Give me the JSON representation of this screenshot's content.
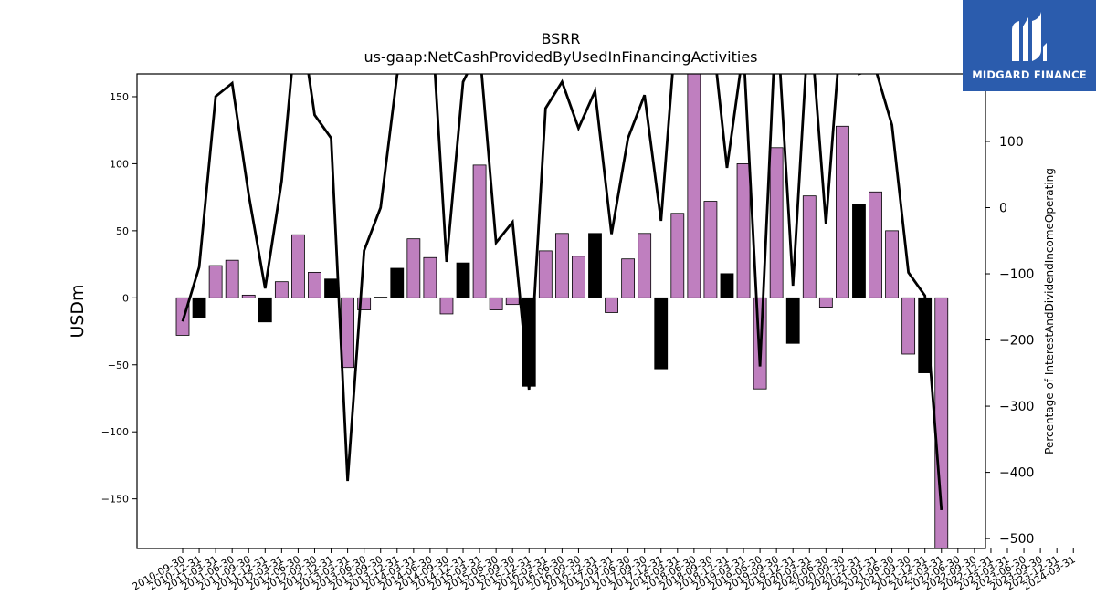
{
  "chart_data": {
    "type": "bar",
    "title": "BSRR",
    "subtitle": "us-gaap:NetCashProvidedByUsedInFinancingActivities",
    "ylabel": "USDm",
    "ylabel_right": "Percentage of InterestAndDividendIncomeOperating",
    "ylim": [
      -187,
      167
    ],
    "ylim_right": [
      -515,
      202
    ],
    "yticks": [
      -150,
      -100,
      -50,
      0,
      50,
      100,
      150
    ],
    "yticks_right": [
      -500,
      -400,
      -300,
      -200,
      -100,
      0,
      100
    ],
    "categories": [
      "2010-09-30",
      "2010-12-31",
      "2011-03-31",
      "2011-06-30",
      "2011-09-30",
      "2011-12-31",
      "2012-03-31",
      "2012-06-30",
      "2012-09-30",
      "2012-12-31",
      "2013-03-31",
      "2013-06-30",
      "2013-09-30",
      "2013-12-31",
      "2014-03-31",
      "2014-06-30",
      "2014-09-30",
      "2014-12-31",
      "2015-03-31",
      "2015-06-30",
      "2015-09-30",
      "2015-12-31",
      "2016-03-31",
      "2016-06-30",
      "2016-09-30",
      "2016-12-31",
      "2017-03-31",
      "2017-06-30",
      "2017-09-30",
      "2017-12-31",
      "2018-03-31",
      "2018-06-30",
      "2018-09-30",
      "2018-12-31",
      "2019-03-31",
      "2019-06-30",
      "2019-09-30",
      "2019-12-31",
      "2020-03-31",
      "2020-06-30",
      "2020-09-30",
      "2020-12-31",
      "2021-03-31",
      "2021-06-30",
      "2021-09-30",
      "2021-12-31",
      "2022-03-31",
      "2022-06-30",
      "2022-09-30",
      "2022-12-31",
      "2023-03-31",
      "2023-06-30",
      "2023-09-30",
      "2023-12-31",
      "2024-03-31"
    ],
    "xtick_labels": [
      "2010-09-30",
      "2010-12-31",
      "2011-03-31",
      "2011-06-30",
      "2011-09-30",
      "2011-12-31",
      "2012-03-31",
      "2012-06-30",
      "2012-09-30",
      "2012-12-31",
      "2013-03-31",
      "2013-06-30",
      "2013-09-30",
      "2013-12-31",
      "2014-03-31",
      "2014-06-30",
      "2014-09-30",
      "2014-12-31",
      "2015-03-31",
      "2015-06-30",
      "2015-09-30",
      "2015-12-31",
      "2016-03-31",
      "2016-06-30",
      "2016-09-30",
      "2016-12-31",
      "2017-03-31",
      "2017-06-30",
      "2017-09-30",
      "2017-12-31",
      "2018-03-31",
      "2018-06-30",
      "2018-09-30",
      "2018-12-31",
      "2019-03-31",
      "2019-06-30",
      "2019-09-30",
      "2019-12-31",
      "2020-03-31",
      "2020-06-30",
      "2020-09-30",
      "2020-12-31",
      "2021-03-31",
      "2021-06-30",
      "2021-09-30",
      "2021-12-31",
      "2022-03-31",
      "2022-06-30",
      "2022-09-30",
      "2022-12-31",
      "2023-03-31",
      "2023-06-30",
      "2023-09-30",
      "2023-12-31",
      "2024-03-31"
    ],
    "bar_values": [
      -28,
      -15,
      24,
      28,
      2,
      -18,
      12,
      47,
      19,
      14,
      -52,
      -9,
      0.5,
      22,
      44,
      30,
      -12,
      26,
      99,
      -9,
      -5,
      -66,
      35,
      48,
      31,
      48,
      -11,
      29,
      48,
      -53,
      63,
      170,
      72,
      18,
      100,
      -68,
      112,
      -34,
      76,
      -7,
      128,
      70,
      79,
      50,
      -42,
      -56,
      -187
    ],
    "bar_highlight": [
      false,
      true,
      false,
      false,
      false,
      true,
      false,
      false,
      false,
      true,
      false,
      false,
      false,
      true,
      false,
      false,
      false,
      true,
      false,
      false,
      false,
      true,
      false,
      false,
      false,
      true,
      false,
      false,
      false,
      true,
      false,
      false,
      false,
      true,
      false,
      false,
      false,
      true,
      false,
      false,
      false,
      true,
      false,
      false,
      false,
      true,
      false
    ],
    "bar_category_index": [
      0,
      1,
      2,
      3,
      4,
      5,
      6,
      7,
      8,
      9,
      10,
      11,
      12,
      13,
      14,
      15,
      16,
      17,
      18,
      19,
      20,
      21,
      22,
      23,
      24,
      25,
      26,
      27,
      28,
      29,
      30,
      31,
      32,
      33,
      34,
      35,
      36,
      37,
      38,
      39,
      40,
      41,
      42,
      43,
      44,
      45,
      46
    ],
    "line_values": [
      -172,
      -90,
      168,
      188,
      20,
      -122,
      40,
      310,
      140,
      105,
      -413,
      -65,
      0,
      200,
      295,
      325,
      -82,
      190,
      240,
      -53,
      -22,
      -275,
      150,
      190,
      120,
      176,
      -40,
      105,
      170,
      -20,
      300,
      310,
      290,
      60,
      240,
      -240,
      300,
      -118,
      300,
      -25,
      300,
      202,
      210,
      125,
      -98,
      -133,
      -457
    ],
    "line_category_index": [
      0,
      1,
      2,
      3,
      4,
      5,
      6,
      7,
      8,
      9,
      10,
      11,
      12,
      13,
      14,
      15,
      16,
      17,
      18,
      19,
      20,
      21,
      22,
      23,
      24,
      25,
      26,
      27,
      28,
      29,
      30,
      31,
      32,
      33,
      34,
      35,
      36,
      37,
      38,
      39,
      40,
      41,
      42,
      43,
      44,
      45,
      46
    ],
    "colors": {
      "bar": "#bf7fbf",
      "bar_highlight": "#000000",
      "line": "#000000"
    },
    "grid": false
  },
  "logo": {
    "text": "MIDGARD FINANCE"
  }
}
